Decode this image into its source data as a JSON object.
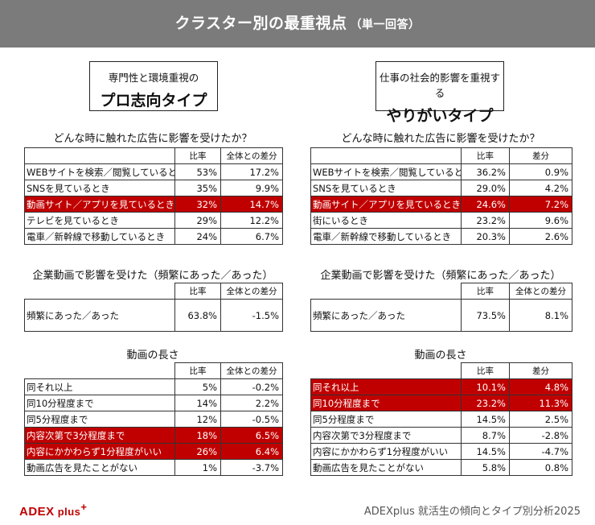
{
  "header": {
    "title": "クラスター別の最重視点",
    "subtitle": "（単一回答）"
  },
  "left": {
    "type_line1": "専門性と環境重視の",
    "type_line2": "プロ志向タイプ",
    "sec1": {
      "title": "どんな時に触れた広告に影響を受けたか？",
      "cols": [
        "比率",
        "全体との差分"
      ],
      "rows": [
        {
          "label": "WEBサイトを検索／閲覧しているとき",
          "rate": "53%",
          "diff": "17.2%",
          "hl": false
        },
        {
          "label": "SNSを見ているとき",
          "rate": "35%",
          "diff": "9.9%",
          "hl": false
        },
        {
          "label": "動画サイト／アプリを見ているとき",
          "rate": "32%",
          "diff": "14.7%",
          "hl": true
        },
        {
          "label": "テレビを見ているとき",
          "rate": "29%",
          "diff": "12.2%",
          "hl": false
        },
        {
          "label": "電車／新幹線で移動しているとき",
          "rate": "24%",
          "diff": "6.7%",
          "hl": false
        }
      ]
    },
    "sec2": {
      "title": "企業動画で影響を受けた（頻繁にあった／あった）",
      "cols": [
        "比率",
        "全体との差分"
      ],
      "rows": [
        {
          "label": "頻繁にあった／あった",
          "rate": "63.8%",
          "diff": "-1.5%",
          "hl": false
        }
      ]
    },
    "sec3": {
      "title": "動画の長さ",
      "cols": [
        "比率",
        "全体との差分"
      ],
      "rows": [
        {
          "label": "同それ以上",
          "rate": "5%",
          "diff": "-0.2%",
          "hl": false
        },
        {
          "label": "同10分程度まで",
          "rate": "14%",
          "diff": "2.2%",
          "hl": false
        },
        {
          "label": "同5分程度まで",
          "rate": "12%",
          "diff": "-0.5%",
          "hl": false
        },
        {
          "label": "内容次第で3分程度まで",
          "rate": "18%",
          "diff": "6.5%",
          "hl": true
        },
        {
          "label": "内容にかかわらず1分程度がいい",
          "rate": "26%",
          "diff": "6.4%",
          "hl": true
        },
        {
          "label": "動画広告を見たことがない",
          "rate": "1%",
          "diff": "-3.7%",
          "hl": false
        }
      ]
    }
  },
  "right": {
    "type_line1": "仕事の社会的影響を重視する",
    "type_line2": "やりがいタイプ",
    "sec1": {
      "title": "どんな時に触れた広告に影響を受けたか？",
      "cols": [
        "比率",
        "差分"
      ],
      "rows": [
        {
          "label": "WEBサイトを検索／閲覧しているとき",
          "rate": "36.2%",
          "diff": "0.9%",
          "hl": false
        },
        {
          "label": "SNSを見ているとき",
          "rate": "29.0%",
          "diff": "4.2%",
          "hl": false
        },
        {
          "label": "動画サイト／アプリを見ているとき",
          "rate": "24.6%",
          "diff": "7.2%",
          "hl": true
        },
        {
          "label": "街にいるとき",
          "rate": "23.2%",
          "diff": "9.6%",
          "hl": false
        },
        {
          "label": "電車／新幹線で移動しているとき",
          "rate": "20.3%",
          "diff": "2.6%",
          "hl": false
        }
      ]
    },
    "sec2": {
      "title": "企業動画で影響を受けた（頻繁にあった／あった）",
      "cols": [
        "比率",
        "全体との差分"
      ],
      "rows": [
        {
          "label": "頻繁にあった／あった",
          "rate": "73.5%",
          "diff": "8.1%",
          "hl": false
        }
      ]
    },
    "sec3": {
      "title": "動画の長さ",
      "cols": [
        "比率",
        "差分"
      ],
      "rows": [
        {
          "label": "同それ以上",
          "rate": "10.1%",
          "diff": "4.8%",
          "hl": true
        },
        {
          "label": "同10分程度まで",
          "rate": "23.2%",
          "diff": "11.3%",
          "hl": true
        },
        {
          "label": "同5分程度まで",
          "rate": "14.5%",
          "diff": "2.5%",
          "hl": false
        },
        {
          "label": "内容次第で3分程度まで",
          "rate": "8.7%",
          "diff": "-2.8%",
          "hl": false
        },
        {
          "label": "内容にかかわらず1分程度がいい",
          "rate": "14.5%",
          "diff": "-4.7%",
          "hl": false
        },
        {
          "label": "動画広告を見たことがない",
          "rate": "5.8%",
          "diff": "0.8%",
          "hl": false
        }
      ]
    }
  },
  "footer": {
    "logo_main": "ADEX",
    "logo_plus": "plus",
    "logo_cross": "+",
    "source": "ADEXplus 就活生の傾向とタイプ別分析2025"
  },
  "colors": {
    "header_bg": "#7b7b7b",
    "highlight": "#c00000",
    "logo": "#c00000"
  }
}
